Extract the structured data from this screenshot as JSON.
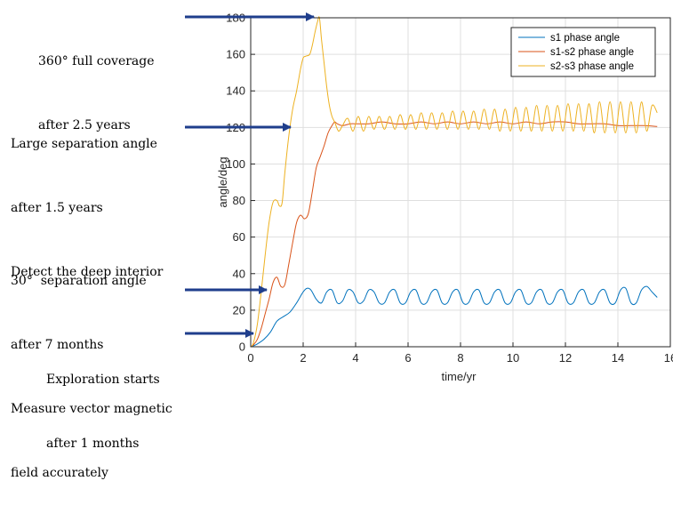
{
  "annotations": [
    {
      "id": "coverage",
      "lines": [
        "360° full coverage",
        "after 2.5 years"
      ]
    },
    {
      "id": "separation",
      "lines": [
        "Large separation angle",
        "after 1.5 years",
        "Detect the deep interior"
      ]
    },
    {
      "id": "thirty",
      "lines": [
        "30°  separation angle",
        "after 7 months",
        "Measure vector magnetic",
        "field accurately"
      ]
    },
    {
      "id": "start",
      "lines": [
        "Exploration starts",
        "after 1 months"
      ]
    }
  ],
  "chart_data": {
    "type": "line",
    "title": "",
    "xlabel": "time/yr",
    "ylabel": "angle/deg",
    "xlim": [
      0,
      16
    ],
    "ylim": [
      0,
      180
    ],
    "xticks": [
      0,
      2,
      4,
      6,
      8,
      10,
      12,
      14,
      16
    ],
    "yticks": [
      0,
      20,
      40,
      60,
      80,
      100,
      120,
      140,
      160,
      180
    ],
    "xtick_labels": [
      "0",
      "2",
      "4",
      "6",
      "8",
      "10",
      "12",
      "14",
      "16"
    ],
    "ytick_labels": [
      "0",
      "20",
      "40",
      "60",
      "80",
      "100",
      "120",
      "140",
      "160",
      "180"
    ],
    "grid": true,
    "legend_position": "top-right",
    "series": [
      {
        "name": "s1 phase angle",
        "color": "#0072BD",
        "x": [
          0,
          0.1,
          0.25,
          0.5,
          0.75,
          1.0,
          1.25,
          1.5,
          1.75,
          2.0,
          2.15,
          2.3,
          2.5,
          2.7,
          2.9,
          3.1,
          3.3,
          3.5,
          3.7,
          3.9,
          4.1,
          4.3,
          4.5,
          4.7,
          4.9,
          5.1,
          5.3,
          5.5,
          5.7,
          5.9,
          6.1,
          6.3,
          6.5,
          6.7,
          6.9,
          7.1,
          7.3,
          7.5,
          7.7,
          7.9,
          8.1,
          8.3,
          8.5,
          8.7,
          8.9,
          9.1,
          9.3,
          9.5,
          9.7,
          9.9,
          10.1,
          10.3,
          10.5,
          10.7,
          10.9,
          11.1,
          11.3,
          11.5,
          11.7,
          11.9,
          12.1,
          12.3,
          12.5,
          12.7,
          12.9,
          13.1,
          13.3,
          13.5,
          13.7,
          13.9,
          14.1,
          14.3,
          14.5,
          14.7,
          14.9,
          15.1,
          15.3,
          15.5
        ],
        "y": [
          0,
          0.5,
          1.5,
          4,
          8,
          14,
          16.5,
          19,
          24,
          30,
          32,
          31,
          26,
          24,
          30,
          31,
          24,
          25,
          31,
          30,
          24,
          25,
          31,
          30,
          24,
          24,
          30,
          31,
          24,
          24,
          30,
          31,
          24,
          24,
          30,
          31,
          24,
          24,
          30,
          31,
          24,
          24,
          30,
          31,
          24,
          24,
          30,
          31,
          24,
          24,
          30,
          31,
          24,
          24,
          30,
          31,
          24,
          24,
          30,
          31,
          24,
          24,
          30,
          31,
          24,
          24,
          30,
          31,
          24,
          24,
          31,
          32,
          24,
          24,
          31,
          33,
          30,
          27
        ]
      },
      {
        "name": "s1-s2 phase angle",
        "color": "#D95319",
        "x": [
          0,
          0.1,
          0.25,
          0.4,
          0.55,
          0.7,
          0.85,
          1.0,
          1.15,
          1.3,
          1.45,
          1.6,
          1.75,
          1.9,
          2.05,
          2.2,
          2.35,
          2.5,
          2.65,
          2.8,
          2.95,
          3.1,
          3.2,
          3.3,
          3.5,
          3.8,
          4.0,
          4.5,
          5.0,
          5.5,
          6.0,
          6.5,
          7.0,
          7.5,
          8.0,
          8.5,
          9.0,
          9.5,
          10.0,
          10.5,
          11.0,
          11.5,
          12.0,
          12.5,
          13.0,
          13.5,
          14.0,
          14.5,
          15.0,
          15.5
        ],
        "y": [
          0,
          1,
          4,
          10,
          18,
          26,
          35,
          38,
          33,
          34,
          45,
          57,
          68,
          72,
          70,
          73,
          85,
          98,
          104,
          110,
          117,
          121,
          123,
          122,
          121,
          122,
          122,
          122,
          123,
          122,
          122,
          123,
          122,
          123,
          122,
          123,
          122,
          123,
          122,
          123,
          122,
          123,
          123,
          122,
          122,
          122,
          121,
          121,
          121,
          120.5
        ]
      },
      {
        "name": "s2-s3 phase angle",
        "color": "#EDB120",
        "x": [
          0,
          0.1,
          0.25,
          0.4,
          0.55,
          0.7,
          0.85,
          1.0,
          1.1,
          1.2,
          1.3,
          1.45,
          1.6,
          1.75,
          1.9,
          2.0,
          2.1,
          2.25,
          2.35,
          2.45,
          2.55,
          2.62,
          2.7,
          2.8,
          2.9,
          3.0,
          3.1,
          3.2,
          3.35,
          3.5,
          3.7,
          3.9,
          4.1,
          4.3,
          4.5,
          4.7,
          4.9,
          5.1,
          5.3,
          5.5,
          5.7,
          5.9,
          6.1,
          6.3,
          6.5,
          6.7,
          6.9,
          7.1,
          7.3,
          7.5,
          7.7,
          7.9,
          8.1,
          8.3,
          8.5,
          8.7,
          8.9,
          9.1,
          9.3,
          9.5,
          9.7,
          9.9,
          10.1,
          10.3,
          10.5,
          10.7,
          10.9,
          11.1,
          11.3,
          11.5,
          11.7,
          11.9,
          12.1,
          12.3,
          12.5,
          12.7,
          12.9,
          13.1,
          13.3,
          13.5,
          13.7,
          13.9,
          14.1,
          14.3,
          14.5,
          14.7,
          14.9,
          15.1,
          15.3,
          15.5
        ],
        "y": [
          0,
          2,
          12,
          30,
          50,
          68,
          79,
          80,
          77,
          79,
          95,
          115,
          130,
          140,
          152,
          158,
          159,
          160,
          165,
          172,
          178,
          180,
          168,
          155,
          142,
          132,
          126,
          123,
          118,
          121,
          125,
          118,
          126,
          118,
          126,
          119,
          126,
          119,
          126,
          119,
          127,
          119,
          127,
          119,
          128,
          119,
          128,
          119,
          128,
          119,
          129,
          119,
          129,
          119,
          129,
          119,
          130,
          119,
          130,
          118,
          130,
          118,
          131,
          118,
          131,
          118,
          132,
          118,
          132,
          118,
          132,
          118,
          133,
          118,
          133,
          118,
          133,
          117,
          134,
          117,
          134,
          117,
          134,
          117,
          134,
          117,
          134,
          118,
          132,
          128
        ]
      }
    ]
  }
}
